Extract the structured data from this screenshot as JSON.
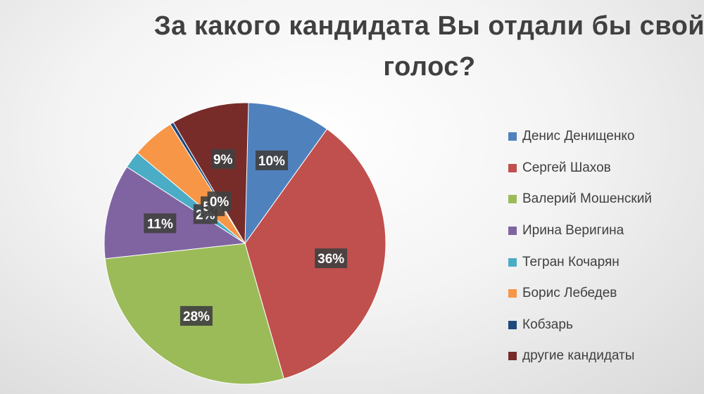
{
  "chart_data": {
    "type": "pie",
    "title": "За какого кандидата Вы отдали бы свой голос?",
    "categories": [
      "Денис Денищенко",
      "Сергей Шахов",
      "Валерий Мошенский",
      "Ирина Веригина",
      "Тегран Кочарян",
      "Борис Лебедев",
      "Кобзарь",
      "другие кандидаты"
    ],
    "values": [
      10,
      36,
      28,
      11,
      2,
      5,
      0,
      9
    ],
    "data_labels": [
      "10%",
      "36%",
      "28%",
      "11%",
      "2%",
      "5%",
      "0%",
      "9%"
    ],
    "colors": [
      "#4f81bd",
      "#c0504d",
      "#9bbb59",
      "#8064a2",
      "#4bacc6",
      "#f79646",
      "#1f497d",
      "#772c2a"
    ],
    "legend_position": "right"
  }
}
